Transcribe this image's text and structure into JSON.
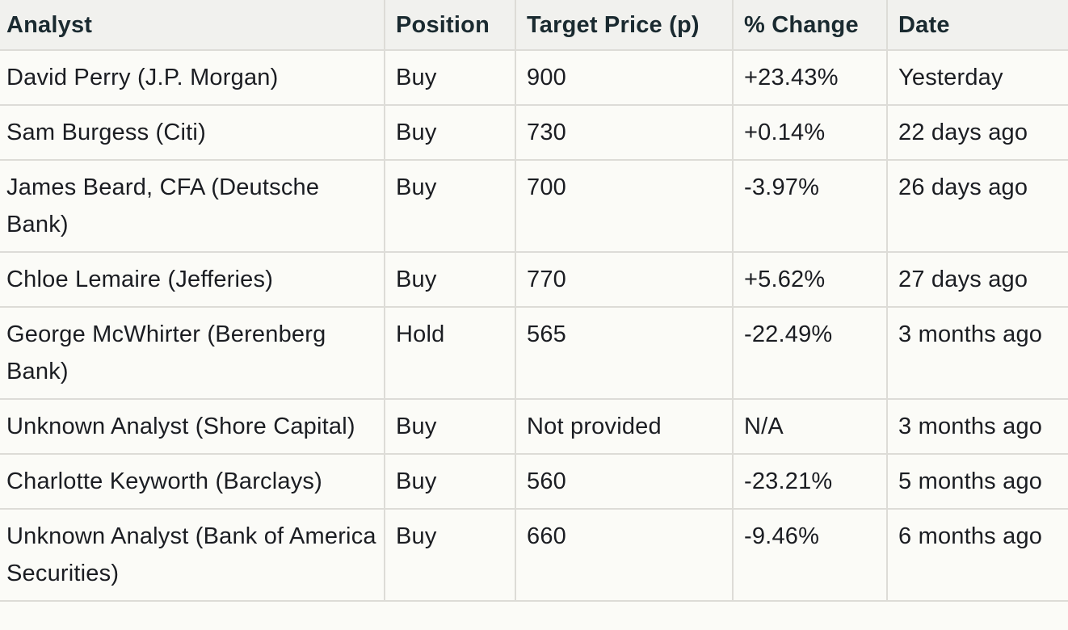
{
  "table": {
    "headers": [
      "Analyst",
      "Position",
      "Target Price (p)",
      "% Change",
      "Date"
    ],
    "rows": [
      {
        "analyst": "David Perry (J.P. Morgan)",
        "position": "Buy",
        "target": "900",
        "change": "+23.43%",
        "date": "Yesterday"
      },
      {
        "analyst": "Sam Burgess (Citi)",
        "position": "Buy",
        "target": "730",
        "change": "+0.14%",
        "date": "22 days ago"
      },
      {
        "analyst": "James Beard, CFA (Deutsche Bank)",
        "position": "Buy",
        "target": "700",
        "change": "-3.97%",
        "date": "26 days ago"
      },
      {
        "analyst": "Chloe Lemaire (Jefferies)",
        "position": "Buy",
        "target": "770",
        "change": "+5.62%",
        "date": "27 days ago"
      },
      {
        "analyst": "George McWhirter (Berenberg Bank)",
        "position": "Hold",
        "target": "565",
        "change": "-22.49%",
        "date": "3 months ago"
      },
      {
        "analyst": "Unknown Analyst (Shore Capital)",
        "position": "Buy",
        "target": "Not provided",
        "change": "N/A",
        "date": "3 months ago"
      },
      {
        "analyst": "Charlotte Keyworth (Barclays)",
        "position": "Buy",
        "target": "560",
        "change": "-23.21%",
        "date": "5 months ago"
      },
      {
        "analyst": "Unknown Analyst (Bank of America Securities)",
        "position": "Buy",
        "target": "660",
        "change": "-9.46%",
        "date": "6 months ago"
      }
    ]
  }
}
